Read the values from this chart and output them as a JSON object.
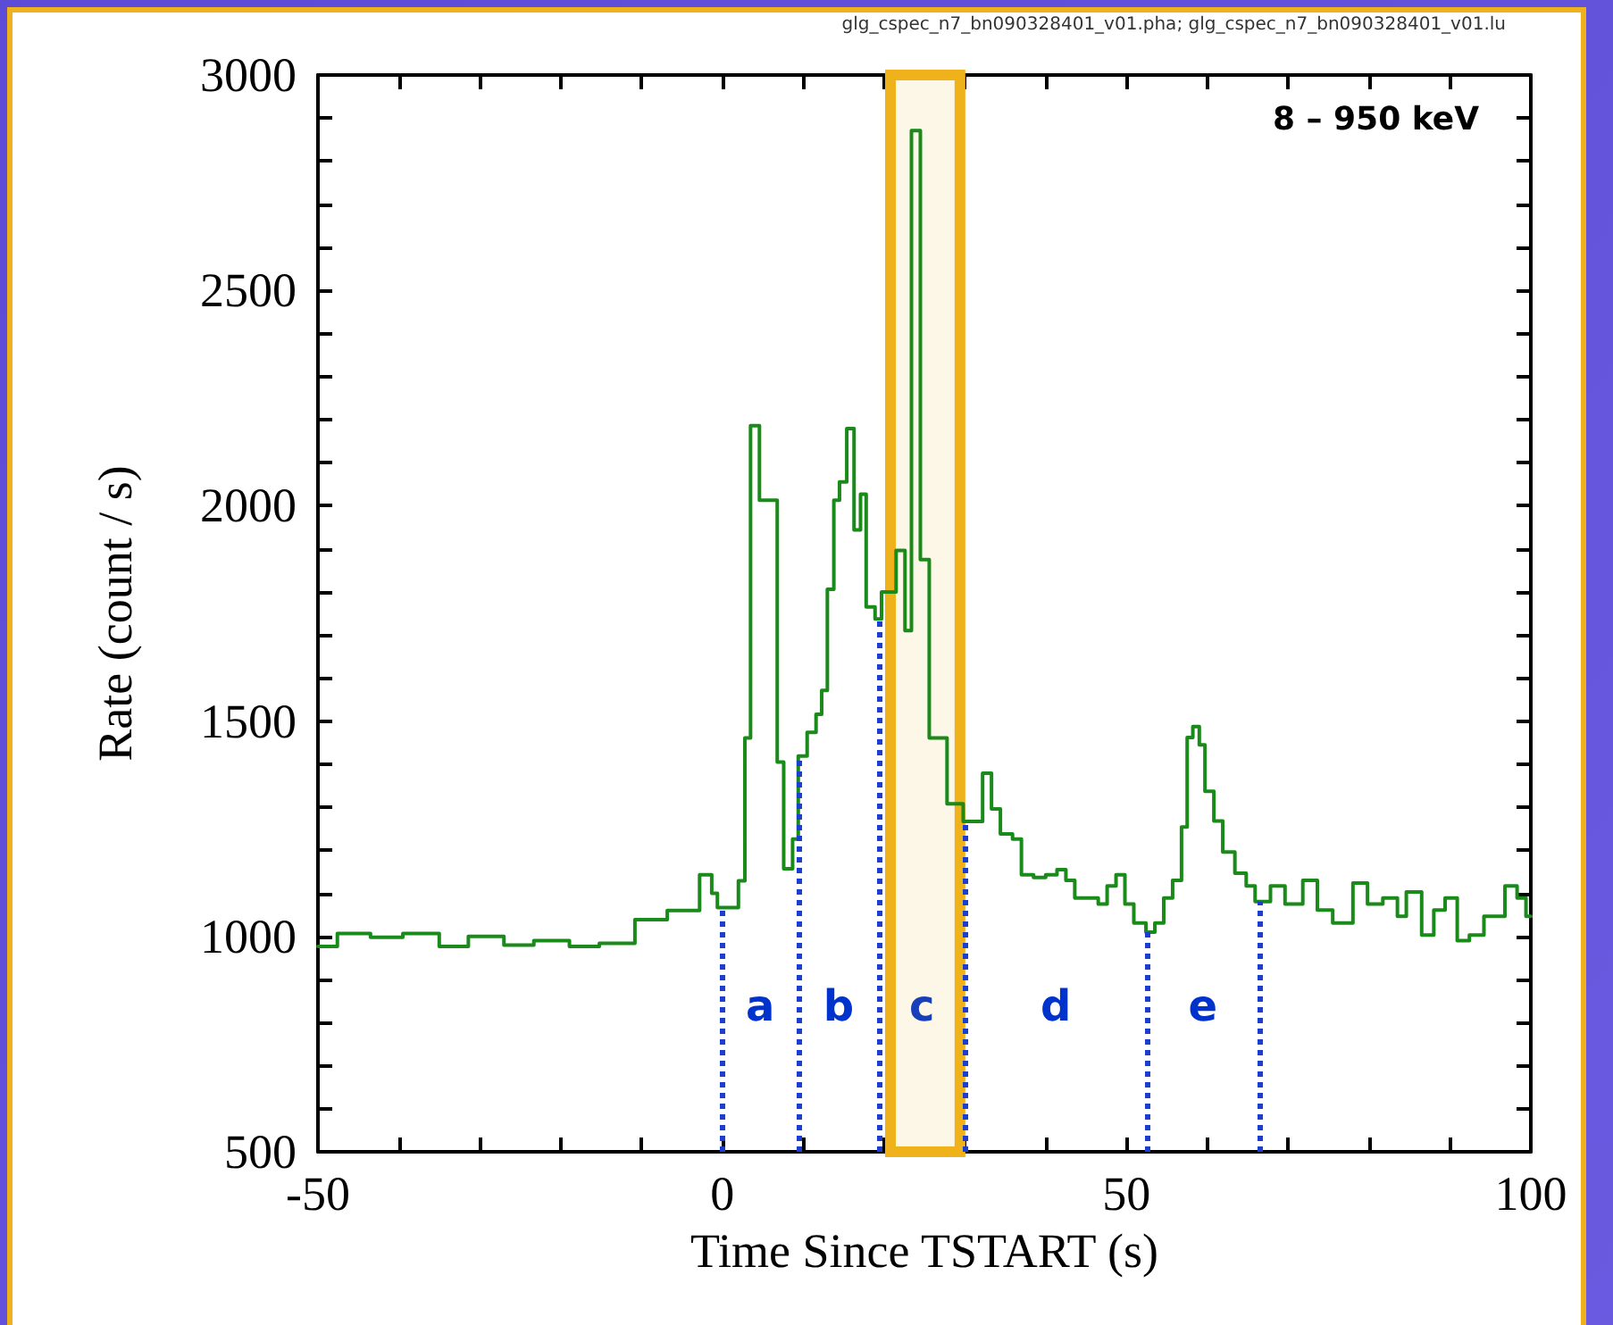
{
  "chart_data": {
    "type": "step",
    "subtitle": "glg_cspec_n7_bn090328401_v01.pha; glg_cspec_n7_bn090328401_v01.lu",
    "xlabel": "Time Since TSTART (s)",
    "ylabel": "Rate (count / s)",
    "annotations": [
      "8 – 950 keV",
      "a",
      "b",
      "c",
      "d",
      "e"
    ],
    "series": [
      {
        "color": "#1a8a1a",
        "x": [
          -50,
          -47.6,
          -43.5,
          -39.5,
          -35,
          -31.4,
          -27,
          -23.3,
          -18.9,
          -15.2,
          -10.8,
          -6.8,
          -2.8,
          -1.3,
          -0.6,
          2.0,
          2.8,
          3.5,
          4.6,
          6.8,
          7.6,
          8.7,
          9.4,
          10.5,
          11.6,
          12.3,
          13.0,
          13.8,
          14.5,
          15.4,
          16.3,
          17.1,
          17.8,
          18.9,
          19.7,
          21.5,
          22.6,
          23.4,
          24.5,
          25.6,
          27.8,
          29.8,
          32.2,
          33.3,
          34.4,
          35.9,
          37,
          38.5,
          40,
          41.4,
          42.5,
          43.6,
          45.1,
          46.5,
          47.6,
          48.7,
          49.8,
          50.9,
          52.4,
          53.5,
          54.6,
          55.7,
          56.8,
          57.5,
          58.2,
          59.0,
          59.7,
          60.8,
          61.9,
          63.4,
          64.8,
          65.9,
          67.8,
          69.6,
          71.8,
          73.6,
          75.5,
          78,
          79.8,
          81.7,
          83.5,
          84.6,
          86.5,
          88,
          89.4,
          90.9,
          92.4,
          94.2,
          96.8,
          98.3,
          99.4,
          100
        ],
        "values": [
          977,
          1007,
          998,
          1007,
          977,
          1000,
          980,
          990,
          977,
          984,
          1039,
          1060,
          1143,
          1100,
          1067,
          1129,
          1461,
          2186,
          2013,
          1405,
          1157,
          1226,
          1419,
          1474,
          1516,
          1571,
          1806,
          2013,
          2055,
          2179,
          1944,
          2027,
          1765,
          1737,
          1800,
          1896,
          1710,
          2871,
          1875,
          1461,
          1308,
          1267,
          1379,
          1296,
          1238,
          1226,
          1143,
          1137,
          1143,
          1155,
          1130,
          1089,
          1089,
          1075,
          1117,
          1143,
          1075,
          1031,
          1010,
          1031,
          1089,
          1130,
          1254,
          1462,
          1487,
          1445,
          1337,
          1268,
          1196,
          1147,
          1117,
          1081,
          1117,
          1075,
          1130,
          1061,
          1031,
          1124,
          1075,
          1089,
          1047,
          1103,
          1003,
          1061,
          1089,
          990,
          1003,
          1047,
          1117,
          1089,
          1047,
          1047
        ]
      }
    ],
    "xlim": [
      -50,
      100
    ],
    "xticks": [
      -50,
      {
        "value": -40,
        "label": null
      },
      {
        "value": -30,
        "label": null
      },
      {
        "value": -20,
        "label": null
      },
      {
        "value": -10,
        "label": null
      },
      0,
      {
        "value": 10,
        "label": null
      },
      {
        "value": 20,
        "label": null
      },
      {
        "value": 30,
        "label": null
      },
      {
        "value": 40,
        "label": null
      },
      50,
      {
        "value": 60,
        "label": null
      },
      {
        "value": 70,
        "label": null
      },
      {
        "value": 80,
        "label": null
      },
      {
        "value": 90,
        "label": null
      },
      100
    ],
    "ylim": [
      500,
      3000
    ],
    "yticks": [
      500,
      {
        "value": 600,
        "label": null
      },
      {
        "value": 700,
        "label": null
      },
      {
        "value": 800,
        "label": null
      },
      {
        "value": 900,
        "label": null
      },
      1000,
      {
        "value": 1100,
        "label": null
      },
      {
        "value": 1200,
        "label": null
      },
      {
        "value": 1300,
        "label": null
      },
      {
        "value": 1400,
        "label": null
      },
      1500,
      {
        "value": 1600,
        "label": null
      },
      {
        "value": 1700,
        "label": null
      },
      {
        "value": 1800,
        "label": null
      },
      {
        "value": 1900,
        "label": null
      },
      2000,
      {
        "value": 2100,
        "label": null
      },
      {
        "value": 2200,
        "label": null
      },
      {
        "value": 2300,
        "label": null
      },
      {
        "value": 2400,
        "label": null
      },
      2500,
      {
        "value": 2600,
        "label": null
      },
      {
        "value": 2700,
        "label": null
      },
      {
        "value": 2800,
        "label": null
      },
      {
        "value": 2900,
        "label": null
      },
      3000
    ],
    "ref_lines": [
      {
        "axis": "x",
        "value": 0,
        "color": "#1a3fd0",
        "line_style": "dotted"
      },
      {
        "axis": "x",
        "value": 9.4,
        "color": "#1a3fd0",
        "line_style": "dotted"
      },
      {
        "axis": "x",
        "value": 19.4,
        "color": "#1a3fd0",
        "line_style": "dotted"
      },
      {
        "axis": "x",
        "value": 30,
        "color": "#1a3fd0",
        "line_style": "dotted"
      },
      {
        "axis": "x",
        "value": 52.5,
        "color": "#1a3fd0",
        "line_style": "dotted"
      },
      {
        "axis": "x",
        "value": 66.4,
        "color": "#1a3fd0",
        "line_style": "dotted"
      }
    ],
    "bands": [
      {
        "axis": "x",
        "from": 20.8,
        "to": 29.4,
        "color": "#f0b21a"
      }
    ],
    "grid": false,
    "marker": "none",
    "line_style": "solid"
  }
}
